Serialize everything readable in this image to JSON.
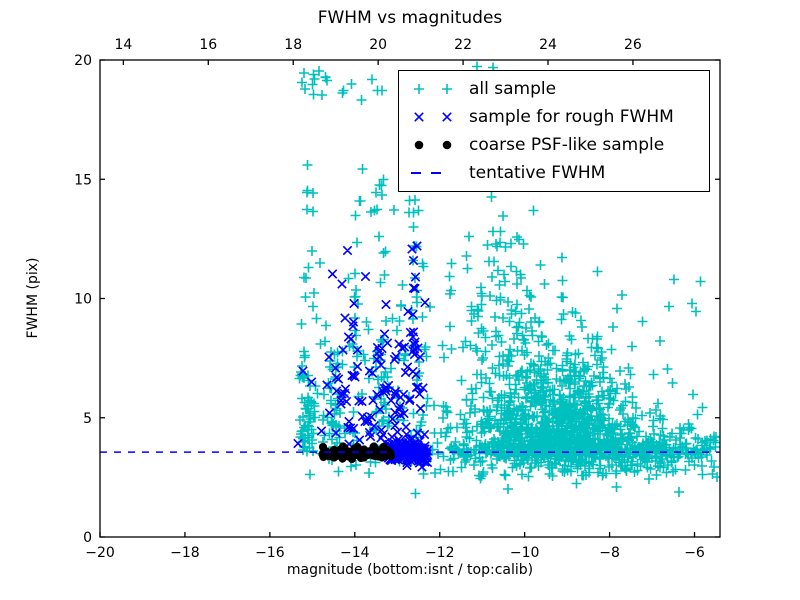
{
  "chart_data": {
    "type": "scatter",
    "title": "FWHM vs magnitudes",
    "xlabel": "magnitude (bottom:isnt / top:calib)",
    "ylabel": "FWHM (pix)",
    "xlim": [
      -20,
      -5.4
    ],
    "ylim": [
      0,
      20
    ],
    "bottom_xticks": [
      -20,
      -18,
      -16,
      -14,
      -12,
      -10,
      -8,
      -6
    ],
    "top_xticks": [
      14,
      16,
      18,
      20,
      22,
      24,
      26
    ],
    "top_axis_offset": 33.45,
    "yticks": [
      0,
      5,
      10,
      15,
      20
    ],
    "grid": false,
    "tentative_fwhm": 3.56,
    "seed": 1337,
    "colors": {
      "all_sample": "#00bfbf",
      "rough_fwhm": "#0000ff",
      "coarse_psf": "#000000",
      "tentative_line": "#0000ff",
      "axes": "#000000"
    },
    "legend": {
      "position": "upper right",
      "entries": [
        {
          "label": "all sample",
          "marker": "plus",
          "color": "#00bfbf"
        },
        {
          "label": "sample for rough FWHM",
          "marker": "x",
          "color": "#0000ff"
        },
        {
          "label": "coarse PSF-like sample",
          "marker": "dot",
          "color": "#000000"
        },
        {
          "label": "tentative FWHM",
          "marker": "dash",
          "color": "#0000ff"
        }
      ]
    },
    "series": [
      {
        "name": "all sample",
        "marker": "plus",
        "color": "#00bfbf",
        "clusters": [
          {
            "n": 950,
            "x": {
              "d": "g",
              "m": -9.4,
              "s": 1.05,
              "lo": -12.25,
              "hi": -5.45
            },
            "y": {
              "d": "hg",
              "base": 3.35,
              "scale": 2.1,
              "max": 12.4
            }
          },
          {
            "n": 330,
            "x": {
              "d": "g",
              "m": -9.0,
              "s": 1.7,
              "lo": -12.3,
              "hi": -5.45
            },
            "y": {
              "d": "g",
              "m": 3.62,
              "s": 0.22,
              "lo": 2.9,
              "hi": 4.4
            }
          },
          {
            "n": 120,
            "x": {
              "d": "g",
              "m": -9.2,
              "s": 1.5,
              "lo": -12.4,
              "hi": -5.5
            },
            "y": {
              "d": "u",
              "a": 2.55,
              "b": 3.45
            }
          },
          {
            "n": 7,
            "x": {
              "d": "u",
              "a": -12.6,
              "b": -6.2
            },
            "y": {
              "d": "u",
              "a": 1.6,
              "b": 2.55
            }
          },
          {
            "n": 90,
            "x": {
              "d": "u",
              "a": -7.6,
              "b": -5.45
            },
            "y": {
              "d": "g",
              "m": 3.7,
              "s": 0.7,
              "lo": 2.4,
              "hi": 6.2
            }
          },
          {
            "n": 110,
            "x": {
              "d": "g",
              "m": -10.5,
              "s": 0.85,
              "lo": -12.3,
              "hi": -8.2
            },
            "y": {
              "d": "hg",
              "base": 7.5,
              "scale": 2.6,
              "max": 16.2
            }
          },
          {
            "n": 60,
            "x": {
              "d": "g",
              "m": -15.12,
              "s": 0.1
            },
            "y": {
              "d": "hg",
              "base": 3.5,
              "scale": 2.2,
              "max": 9.0
            }
          },
          {
            "n": 16,
            "x": {
              "d": "g",
              "m": -15.1,
              "s": 0.09
            },
            "y": {
              "d": "u",
              "a": 8.5,
              "b": 19.6
            }
          },
          {
            "n": 40,
            "x": {
              "d": "g",
              "m": -14.45,
              "s": 0.1
            },
            "y": {
              "d": "hg",
              "base": 3.3,
              "scale": 2.0,
              "max": 8.5
            }
          },
          {
            "n": 22,
            "x": {
              "d": "g",
              "m": -13.95,
              "s": 0.08
            },
            "y": {
              "d": "u",
              "a": 3.6,
              "b": 15.5
            }
          },
          {
            "n": 30,
            "x": {
              "d": "g",
              "m": -13.38,
              "s": 0.1
            },
            "y": {
              "d": "u",
              "a": 3.4,
              "b": 16.0
            }
          },
          {
            "n": 40,
            "x": {
              "d": "g",
              "m": -12.55,
              "s": 0.12
            },
            "y": {
              "d": "u",
              "a": 3.5,
              "b": 17.6
            }
          },
          {
            "n": 90,
            "x": {
              "d": "u",
              "a": -15.0,
              "b": -12.3
            },
            "y": {
              "d": "hg",
              "base": 3.8,
              "scale": 3.6,
              "max": 17.0
            }
          },
          {
            "n": 25,
            "x": {
              "d": "u",
              "a": -15.1,
              "b": -12.3
            },
            "y": {
              "d": "g",
              "m": 3.3,
              "s": 0.35,
              "lo": 2.6,
              "hi": 4.2
            }
          },
          {
            "n": 16,
            "x": {
              "d": "u",
              "a": -15.3,
              "b": -13.3
            },
            "y": {
              "d": "g",
              "m": 19.0,
              "s": 0.45,
              "lo": 17.8,
              "hi": 19.75
            }
          },
          {
            "n": 3,
            "x": {
              "d": "u",
              "a": -11.2,
              "b": -9.5
            },
            "y": {
              "d": "u",
              "a": 19.3,
              "b": 19.8
            }
          },
          {
            "n": 12,
            "x": {
              "d": "u",
              "a": -8.3,
              "b": -5.6
            },
            "y": {
              "d": "u",
              "a": 6.5,
              "b": 12.5
            }
          }
        ]
      },
      {
        "name": "sample for rough FWHM",
        "marker": "x",
        "color": "#0000ff",
        "clusters": [
          {
            "n": 170,
            "x": {
              "d": "u",
              "a": -13.28,
              "b": -12.28
            },
            "y": {
              "d": "g",
              "m": 3.55,
              "s": 0.16,
              "lo": 3.05,
              "hi": 4.05
            }
          },
          {
            "n": 35,
            "x": {
              "d": "u",
              "a": -13.3,
              "b": -12.3
            },
            "y": {
              "d": "g",
              "m": 3.6,
              "s": 0.5,
              "lo": 2.8,
              "hi": 5.2
            }
          },
          {
            "n": 95,
            "x": {
              "d": "u",
              "a": -14.7,
              "b": -12.3
            },
            "y": {
              "d": "hg",
              "base": 3.9,
              "scale": 3.1,
              "max": 12.6
            }
          },
          {
            "n": 22,
            "x": {
              "d": "g",
              "m": -12.58,
              "s": 0.1
            },
            "y": {
              "d": "u",
              "a": 4.5,
              "b": 12.4
            }
          },
          {
            "n": 6,
            "x": {
              "d": "g",
              "m": -14.85,
              "s": 0.25
            },
            "y": {
              "d": "g",
              "m": 4.6,
              "s": 1.2,
              "lo": 3.3,
              "hi": 7.2
            }
          }
        ]
      },
      {
        "name": "coarse PSF-like sample",
        "marker": "dot",
        "color": "#000000",
        "clusters": [
          {
            "n": 120,
            "x": {
              "d": "u",
              "a": -14.77,
              "b": -13.15
            },
            "y": {
              "d": "g",
              "m": 3.5,
              "s": 0.12,
              "lo": 3.22,
              "hi": 3.8
            }
          }
        ]
      }
    ]
  }
}
